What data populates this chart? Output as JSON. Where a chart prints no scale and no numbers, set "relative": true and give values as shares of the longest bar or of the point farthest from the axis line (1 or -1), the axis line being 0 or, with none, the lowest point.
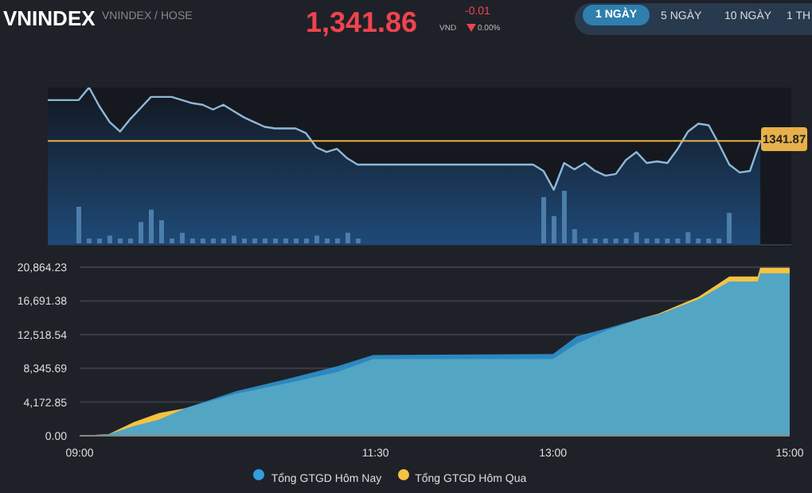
{
  "chart_data": [
    {
      "type": "area",
      "title": "VNINDEX",
      "subtitle": "VNINDEX / HOSE",
      "annotations": [
        "1,341.86",
        "VND",
        "-0.01",
        "0.00%",
        "1 NGÀY",
        "5 NGÀY",
        "10 NGÀY",
        "1 TH",
        "1341.87"
      ],
      "relative": true,
      "categories": [
        null,
        null,
        null,
        null,
        null,
        null,
        null,
        null,
        null,
        null,
        null,
        null,
        null,
        null,
        null,
        null,
        null,
        null,
        null,
        null,
        null,
        null,
        null,
        null,
        null,
        null,
        null,
        null,
        null,
        null,
        null,
        null,
        null,
        null,
        null,
        null,
        null,
        null,
        null,
        null,
        null,
        null,
        null,
        null,
        null,
        null,
        null,
        null,
        null,
        null,
        null,
        null,
        null,
        null,
        null,
        null,
        null,
        null,
        null,
        null,
        null,
        null,
        null,
        null,
        null,
        null,
        null,
        null,
        null,
        null,
        null,
        null,
        null
      ],
      "series": [
        {
          "color": "#8fb8d8",
          "values": [
            0.92,
            0.92,
            0.92,
            0.92,
            1,
            0.88,
            0.78,
            0.72,
            0.8,
            0.87,
            0.94,
            0.94,
            0.94,
            0.92,
            0.9,
            0.89,
            0.86,
            0.89,
            0.85,
            0.81,
            0.78,
            0.75,
            0.74,
            0.74,
            0.74,
            0.71,
            0.62,
            0.59,
            0.61,
            0.55,
            0.51,
            0.51,
            0.51,
            0.51,
            0.51,
            0.51,
            0.51,
            0.51,
            0.51,
            0.51,
            0.51,
            0.51,
            0.51,
            0.51,
            0.51,
            0.51,
            0.51,
            0.51,
            0.47,
            0.35,
            0.52,
            0.48,
            0.52,
            0.47,
            0.44,
            0.45,
            0.54,
            0.59,
            0.52,
            0.53,
            0.52,
            0.61,
            0.72,
            0.77,
            0.76,
            0.64,
            0.51,
            0.46,
            0.47,
            0.66,
            null,
            null,
            null
          ]
        }
      ],
      "ref_lines": [
        {
          "axis": "y",
          "value": 0.66,
          "color": "#e8b04a"
        }
      ]
    },
    {
      "type": "bar",
      "relative": true,
      "categories": [
        null,
        null,
        null,
        null,
        null,
        null,
        null,
        null,
        null,
        null,
        null,
        null,
        null,
        null,
        null,
        null,
        null,
        null,
        null,
        null,
        null,
        null,
        null,
        null,
        null,
        null,
        null,
        null
      ],
      "series": [
        {
          "color": "#4d7eab",
          "values": [
            1,
            0.13,
            0.13,
            0.21,
            0.13,
            0.13,
            0.58,
            0.92,
            0.63,
            0.13,
            0.29,
            0.13,
            0.13,
            0.13,
            0.13,
            0.21,
            0.13,
            0.13,
            0.13,
            0.13,
            0.13,
            0.13,
            0.13,
            0.21,
            0.13,
            0.13,
            0.29,
            0.13
          ]
        }
      ]
    },
    {
      "type": "bar",
      "relative": true,
      "categories": [
        null,
        null,
        null,
        null,
        null,
        null,
        null,
        null,
        null,
        null,
        null,
        null,
        null,
        null,
        null,
        null,
        null,
        null,
        null
      ],
      "series": [
        {
          "color": "#4d7eab",
          "values": [
            0.88,
            0.52,
            1,
            0.27,
            0.09,
            0.09,
            0.09,
            0.09,
            0.09,
            0.21,
            0.09,
            0.09,
            0.09,
            0.09,
            0.21,
            0.09,
            0.09,
            0.09,
            0.58
          ]
        }
      ]
    },
    {
      "type": "area",
      "x": [
        9.0,
        9.245,
        9.46,
        9.67,
        9.89,
        10.32,
        10.75,
        11.18,
        11.48,
        13.0,
        13.2,
        13.46,
        13.76,
        13.89,
        14.23,
        14.49,
        14.73,
        14.75,
        15.0
      ],
      "xlim": [
        9,
        15
      ],
      "xticks": [
        {
          "value": 9,
          "label": "09:00"
        },
        {
          "value": 11.5,
          "label": "11:30"
        },
        {
          "value": 13,
          "label": "13:00"
        },
        {
          "value": 15,
          "label": "15:00"
        }
      ],
      "ylim": [
        0,
        20864.23
      ],
      "yticks": [
        {
          "value": 0,
          "label": "0.00"
        },
        {
          "value": 4172.85,
          "label": "4,172.85"
        },
        {
          "value": 8345.69,
          "label": "8,345.69"
        },
        {
          "value": 12518.54,
          "label": "12,518.54"
        },
        {
          "value": 16691.38,
          "label": "16,691.38"
        },
        {
          "value": 20864.23,
          "label": "20,864.23"
        }
      ],
      "grid": "y",
      "legend": "bottom",
      "series": [
        {
          "name": "Tổng GTGD Hôm Nay",
          "color": "#2f9fe0",
          "values": [
            0,
            200,
            1200,
            2000,
            3400,
            5500,
            7000,
            8600,
            10000,
            10100,
            12300,
            13300,
            14600,
            15000,
            16900,
            19100,
            19100,
            20100,
            20100
          ]
        },
        {
          "name": "Tổng GTGD Hôm Qua",
          "color": "#f5c342",
          "values": [
            0,
            200,
            1700,
            2800,
            3400,
            5200,
            6500,
            7900,
            9500,
            9500,
            11400,
            13100,
            14600,
            15100,
            17200,
            19700,
            19700,
            20800,
            20800
          ]
        }
      ]
    }
  ]
}
